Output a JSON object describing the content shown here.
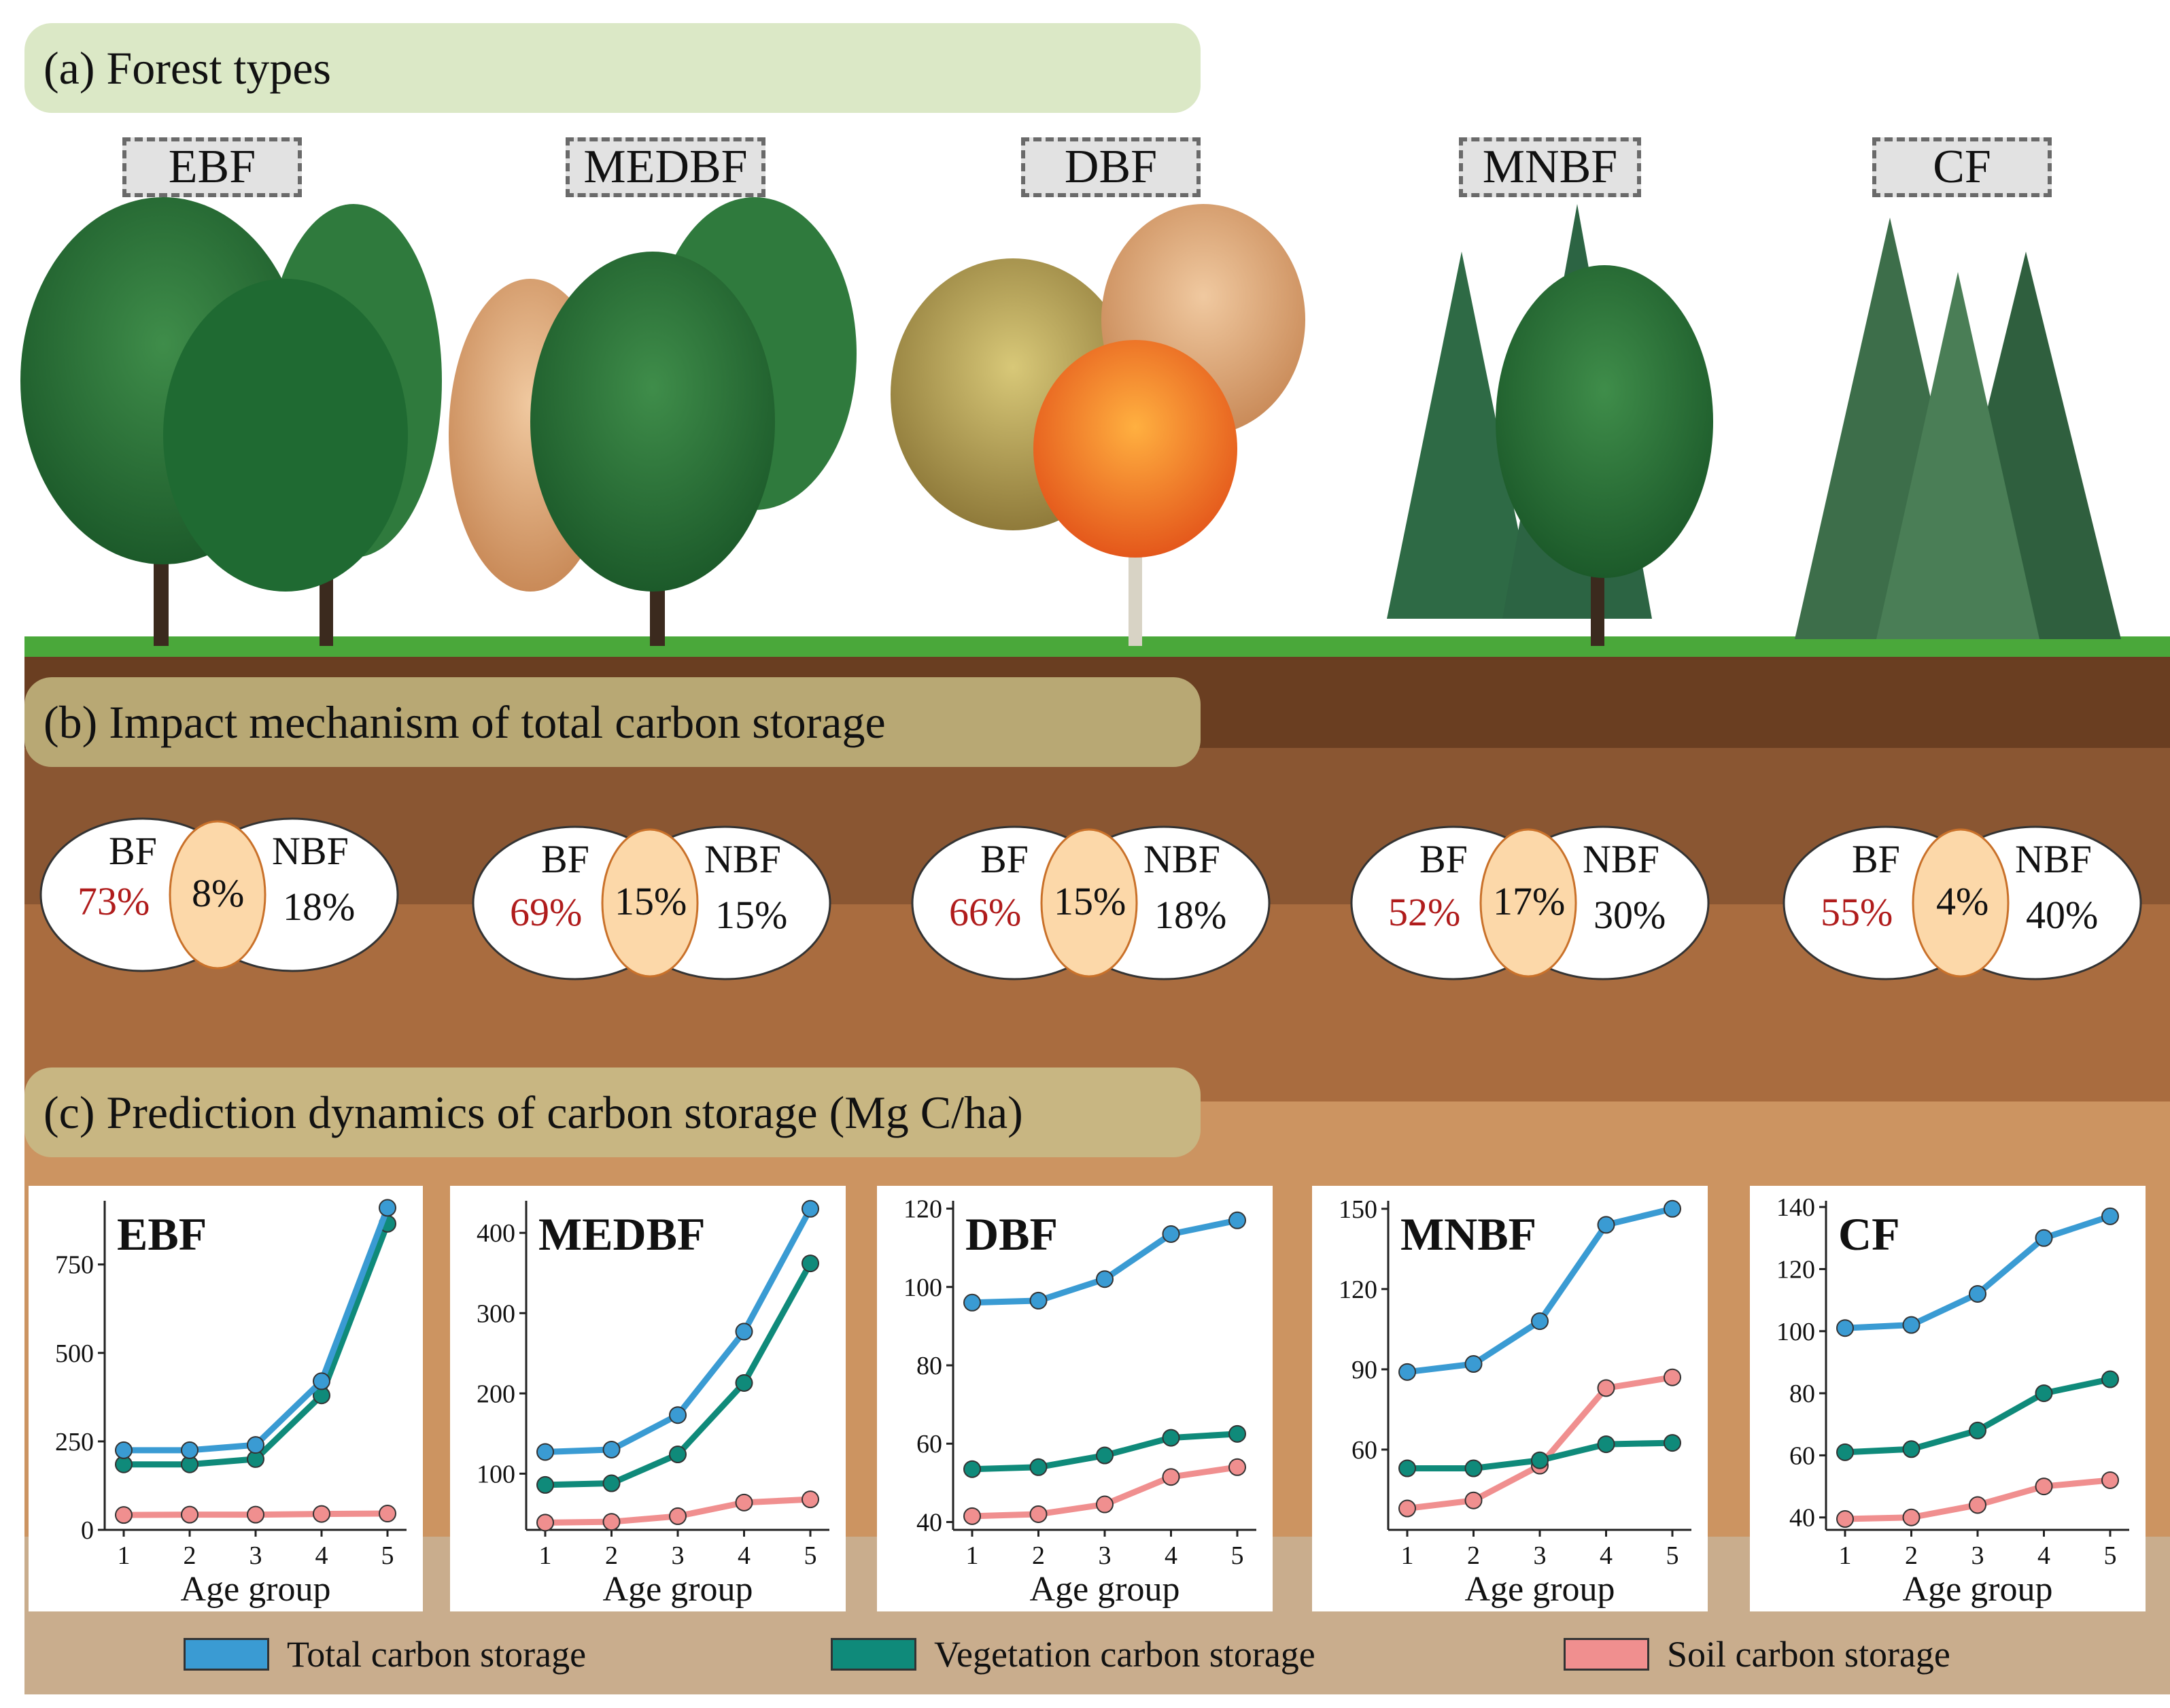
{
  "panels": {
    "a_title": "(a) Forest types",
    "b_title": "(b) Impact mechanism of total carbon storage",
    "c_title": "(c) Prediction dynamics of carbon storage (Mg C/ha)"
  },
  "forest_types": [
    "EBF",
    "MEDBF",
    "DBF",
    "MNBF",
    "CF"
  ],
  "venn": [
    {
      "left": "BF",
      "right": "NBF",
      "bf": "73%",
      "shared": "8%",
      "nbf": "18%"
    },
    {
      "left": "BF",
      "right": "NBF",
      "bf": "69%",
      "shared": "15%",
      "nbf": "15%"
    },
    {
      "left": "BF",
      "right": "NBF",
      "bf": "66%",
      "shared": "15%",
      "nbf": "18%"
    },
    {
      "left": "BF",
      "right": "NBF",
      "bf": "52%",
      "shared": "17%",
      "nbf": "30%"
    },
    {
      "left": "BF",
      "right": "NBF",
      "bf": "55%",
      "shared": "4%",
      "nbf": "40%"
    }
  ],
  "colors": {
    "total": "#3a9bd3",
    "vegetation": "#0f8a7a",
    "soil": "#f08f8f",
    "venn_overlap": "#fcd8a9",
    "venn_red": "#b01c1c",
    "panel_a": "#dbe8c6",
    "panel_b": "#b8a874",
    "panel_c": "#c8b682"
  },
  "legend": {
    "total": "Total carbon storage",
    "vegetation": "Vegetation carbon storage",
    "soil": "Soil carbon storage"
  },
  "chart_data": [
    {
      "type": "line",
      "title": "EBF",
      "xlabel": "Age group",
      "ylabel": "",
      "x": [
        1,
        2,
        3,
        4,
        5
      ],
      "ylim": [
        0,
        930
      ],
      "yticks": [
        0,
        250,
        500,
        750
      ],
      "series": [
        {
          "name": "Total carbon storage",
          "values": [
            225,
            225,
            240,
            420,
            910
          ]
        },
        {
          "name": "Vegetation carbon storage",
          "values": [
            185,
            185,
            200,
            380,
            865
          ]
        },
        {
          "name": "Soil carbon storage",
          "values": [
            42,
            43,
            43,
            45,
            46
          ]
        }
      ]
    },
    {
      "type": "line",
      "title": "MEDBF",
      "xlabel": "Age group",
      "ylabel": "",
      "x": [
        1,
        2,
        3,
        4,
        5
      ],
      "ylim": [
        30,
        440
      ],
      "yticks": [
        100,
        200,
        300,
        400
      ],
      "series": [
        {
          "name": "Total carbon storage",
          "values": [
            127,
            130,
            173,
            277,
            430
          ]
        },
        {
          "name": "Vegetation carbon storage",
          "values": [
            86,
            88,
            124,
            213,
            362
          ]
        },
        {
          "name": "Soil carbon storage",
          "values": [
            39,
            40,
            47,
            64,
            68
          ]
        }
      ]
    },
    {
      "type": "line",
      "title": "DBF",
      "xlabel": "Age group",
      "ylabel": "",
      "x": [
        1,
        2,
        3,
        4,
        5
      ],
      "ylim": [
        38,
        122
      ],
      "yticks": [
        40,
        60,
        80,
        100,
        120
      ],
      "series": [
        {
          "name": "Total carbon storage",
          "values": [
            96,
            96.5,
            102,
            113.5,
            117
          ]
        },
        {
          "name": "Vegetation carbon storage",
          "values": [
            53.5,
            54,
            57,
            61.5,
            62.5
          ]
        },
        {
          "name": "Soil carbon storage",
          "values": [
            41.5,
            42,
            44.5,
            51.5,
            54
          ]
        }
      ]
    },
    {
      "type": "line",
      "title": "MNBF",
      "xlabel": "Age group",
      "ylabel": "",
      "x": [
        1,
        2,
        3,
        4,
        5
      ],
      "ylim": [
        30,
        153
      ],
      "yticks": [
        60,
        90,
        120,
        150
      ],
      "series": [
        {
          "name": "Total carbon storage",
          "values": [
            89,
            92,
            108,
            144,
            150
          ]
        },
        {
          "name": "Vegetation carbon storage",
          "values": [
            53,
            53,
            56,
            62,
            62.5
          ]
        },
        {
          "name": "Soil carbon storage",
          "values": [
            38,
            41,
            54,
            83,
            87
          ]
        }
      ]
    },
    {
      "type": "line",
      "title": "CF",
      "xlabel": "Age group",
      "ylabel": "",
      "x": [
        1,
        2,
        3,
        4,
        5
      ],
      "ylim": [
        36,
        142
      ],
      "yticks": [
        40,
        60,
        80,
        100,
        120,
        140
      ],
      "series": [
        {
          "name": "Total carbon storage",
          "values": [
            101,
            102,
            112,
            130,
            137
          ]
        },
        {
          "name": "Vegetation carbon storage",
          "values": [
            61,
            62,
            68,
            80,
            84.5
          ]
        },
        {
          "name": "Soil carbon storage",
          "values": [
            39.5,
            40,
            44,
            50,
            52
          ]
        }
      ]
    }
  ]
}
